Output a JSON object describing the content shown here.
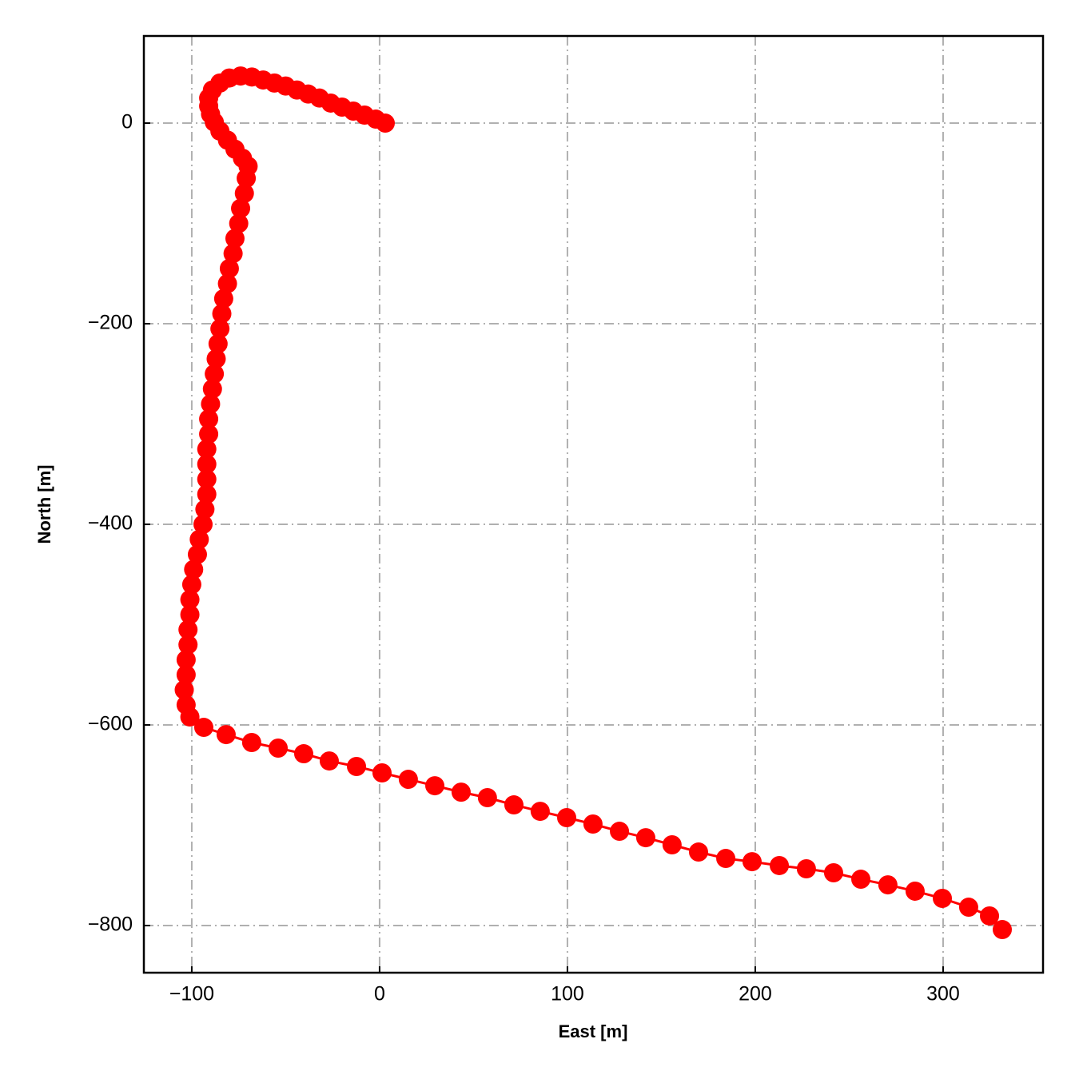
{
  "chart_data": {
    "type": "line",
    "xlabel": "East [m]",
    "ylabel": "North [m]",
    "x": [
      3,
      -2,
      -8,
      -14,
      -20,
      -26,
      -32,
      -38,
      -44,
      -50,
      -56,
      -62,
      -68,
      -74,
      -80,
      -85,
      -89,
      -91,
      -91,
      -90,
      -88,
      -85,
      -81,
      -77,
      -73,
      -70,
      -71,
      -72,
      -74,
      -75,
      -77,
      -78,
      -80,
      -81,
      -83,
      -84,
      -85,
      -86,
      -87,
      -88,
      -89,
      -90,
      -91,
      -91,
      -92,
      -92,
      -92,
      -92,
      -93,
      -94,
      -96,
      -97,
      -99,
      -100,
      -101,
      -101,
      -102,
      -102,
      -103,
      -103,
      -104,
      -103,
      -101,
      -93.6,
      -81.7,
      -68.1,
      -54.0,
      -40.4,
      -26.8,
      -12.3,
      1.3,
      15.3,
      29.4,
      43.4,
      57.4,
      71.5,
      85.5,
      99.6,
      113.6,
      127.7,
      141.7,
      155.7,
      169.8,
      184.3,
      198.3,
      212.8,
      227.2,
      241.7,
      256.2,
      270.6,
      285.1,
      299.6,
      313.6,
      324.7,
      331.5
    ],
    "series": [
      {
        "color": "#ff0000",
        "values": [
          0,
          4,
          8,
          12,
          16,
          20,
          25,
          29,
          33,
          37,
          40,
          43,
          46,
          47,
          45,
          40,
          33,
          25,
          17,
          9,
          1,
          -8,
          -17,
          -26,
          -35,
          -43,
          -55,
          -70,
          -85,
          -100,
          -115,
          -130,
          -145,
          -160,
          -175,
          -190,
          -205,
          -220,
          -235,
          -250,
          -265,
          -280,
          -295,
          -310,
          -325,
          -340,
          -355,
          -370,
          -385,
          -400,
          -415,
          -430,
          -445,
          -460,
          -475,
          -490,
          -505,
          -520,
          -535,
          -550,
          -565,
          -580,
          -592,
          -602.4,
          -609.6,
          -617.5,
          -623.1,
          -628.7,
          -635.9,
          -641.4,
          -647.8,
          -654.2,
          -660.6,
          -667.0,
          -672.5,
          -679.7,
          -686.1,
          -692.4,
          -698.8,
          -706.0,
          -712.4,
          -719.5,
          -726.7,
          -733.1,
          -736.3,
          -740.2,
          -743.4,
          -747.4,
          -753.8,
          -759.4,
          -765.7,
          -772.9,
          -781.7,
          -790.4,
          -804.0
        ]
      }
    ],
    "xlim": [
      -125.5,
      353.2
    ],
    "ylim": [
      -847,
      86.9
    ],
    "xticks": [
      {
        "value": -100,
        "label": "−100"
      },
      0,
      100,
      200,
      300
    ],
    "yticks": [
      {
        "value": -800,
        "label": "−800"
      },
      {
        "value": -600,
        "label": "−600"
      },
      {
        "value": -400,
        "label": "−400"
      },
      {
        "value": -200,
        "label": "−200"
      },
      0
    ],
    "grid": true
  }
}
